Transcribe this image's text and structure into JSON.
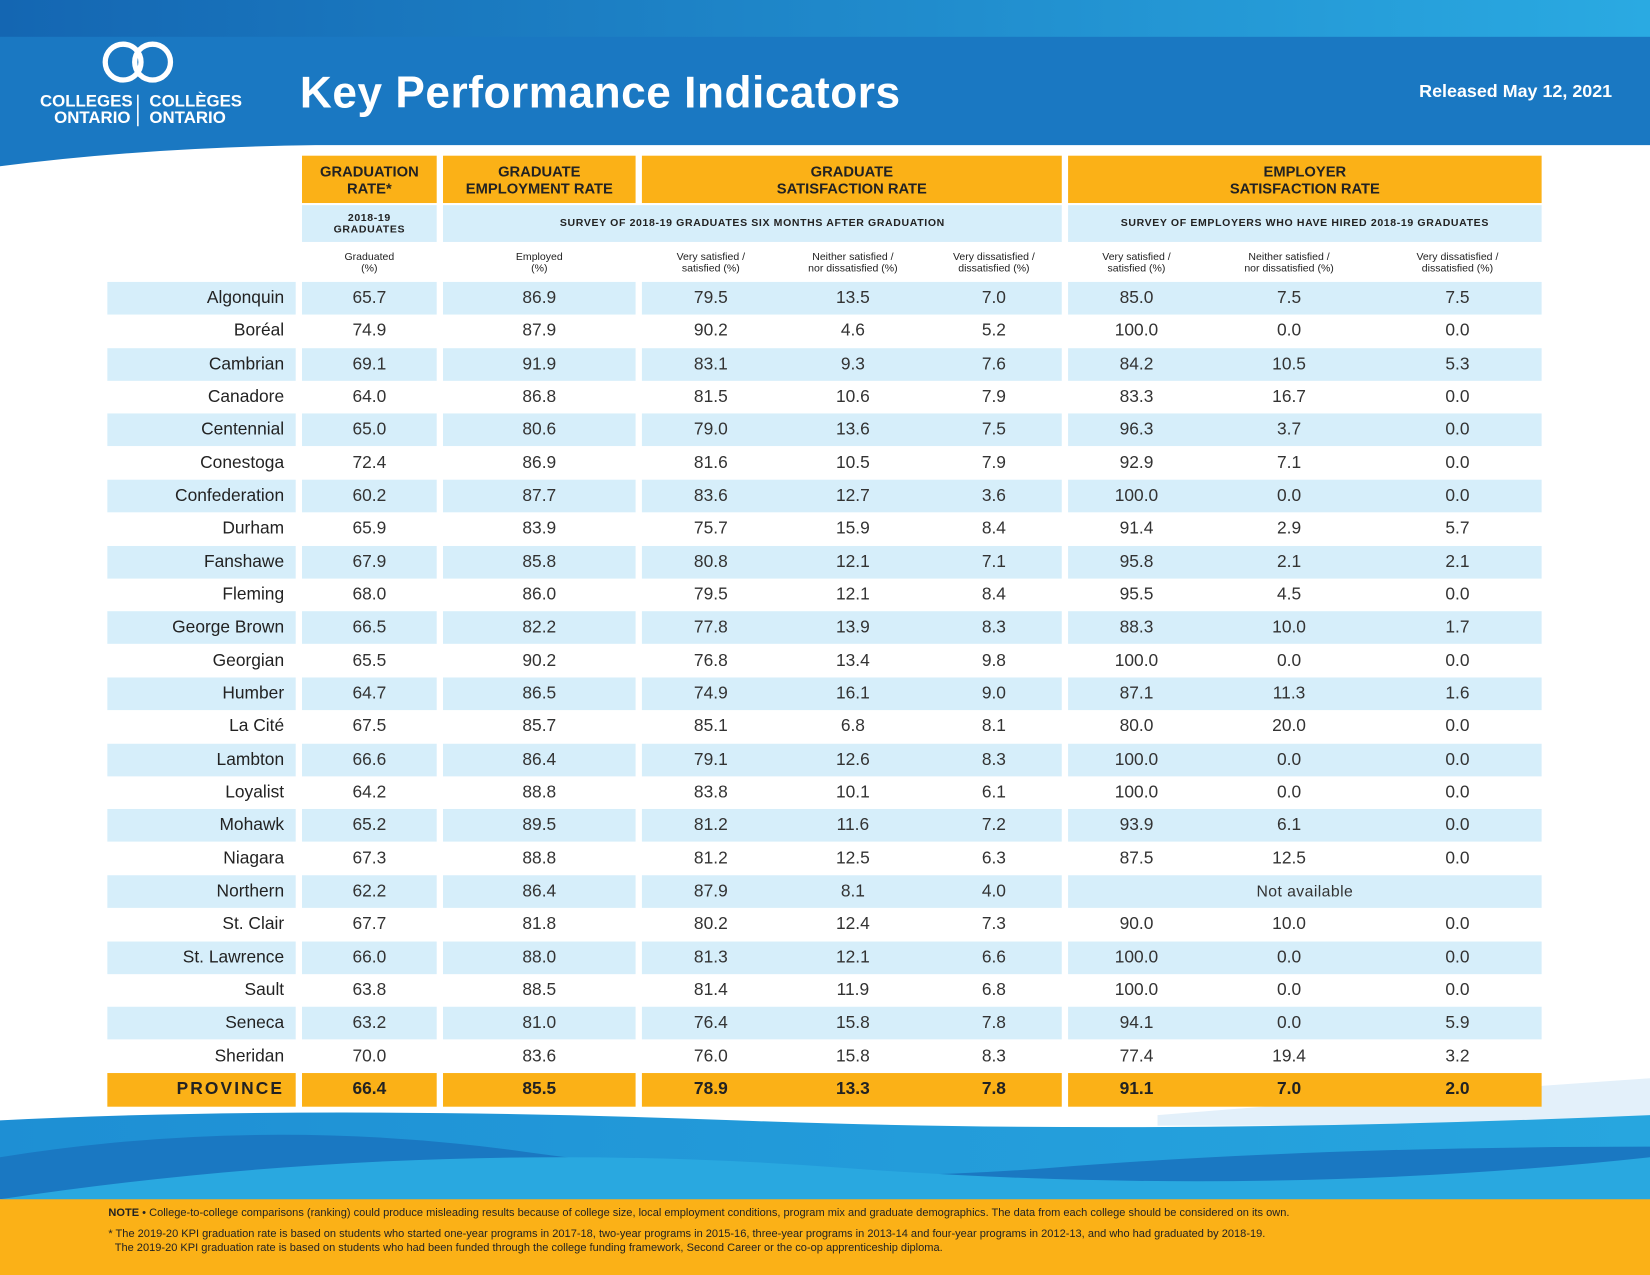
{
  "header": {
    "logo": [
      "COLLEGES",
      "ONTARIO",
      "COLLÈGES",
      "ONTARIO"
    ],
    "title": "Key Performance Indicators",
    "released": "Released May 12, 2021"
  },
  "table": {
    "groups": [
      "GRADUATION\nRATE*",
      "GRADUATE\nEMPLOYMENT RATE",
      "GRADUATE\nSATISFACTION RATE",
      "EMPLOYER\nSATISFACTION RATE"
    ],
    "subheads": [
      "2018-19\nGRADUATES",
      "SURVEY OF 2018-19 GRADUATES SIX MONTHS AFTER GRADUATION",
      "SURVEY OF EMPLOYERS WHO HAVE HIRED 2018-19 GRADUATES"
    ],
    "columns": [
      "Graduated\n(%)",
      "Employed\n(%)",
      "Very satisfied /\nsatisfied (%)",
      "Neither satisfied /\nnor dissatisfied (%)",
      "Very dissatisfied /\ndissatisfied (%)",
      "Very satisfied /\nsatisfied (%)",
      "Neither satisfied /\nnor dissatisfied (%)",
      "Very dissatisfied /\ndissatisfied (%)"
    ],
    "rows": [
      {
        "name": "Algonquin",
        "values": [
          "65.7",
          "86.9",
          "79.5",
          "13.5",
          "7.0",
          "85.0",
          "7.5",
          "7.5"
        ]
      },
      {
        "name": "Boréal",
        "values": [
          "74.9",
          "87.9",
          "90.2",
          "4.6",
          "5.2",
          "100.0",
          "0.0",
          "0.0"
        ]
      },
      {
        "name": "Cambrian",
        "values": [
          "69.1",
          "91.9",
          "83.1",
          "9.3",
          "7.6",
          "84.2",
          "10.5",
          "5.3"
        ]
      },
      {
        "name": "Canadore",
        "values": [
          "64.0",
          "86.8",
          "81.5",
          "10.6",
          "7.9",
          "83.3",
          "16.7",
          "0.0"
        ]
      },
      {
        "name": "Centennial",
        "values": [
          "65.0",
          "80.6",
          "79.0",
          "13.6",
          "7.5",
          "96.3",
          "3.7",
          "0.0"
        ]
      },
      {
        "name": "Conestoga",
        "values": [
          "72.4",
          "86.9",
          "81.6",
          "10.5",
          "7.9",
          "92.9",
          "7.1",
          "0.0"
        ]
      },
      {
        "name": "Confederation",
        "values": [
          "60.2",
          "87.7",
          "83.6",
          "12.7",
          "3.6",
          "100.0",
          "0.0",
          "0.0"
        ]
      },
      {
        "name": "Durham",
        "values": [
          "65.9",
          "83.9",
          "75.7",
          "15.9",
          "8.4",
          "91.4",
          "2.9",
          "5.7"
        ]
      },
      {
        "name": "Fanshawe",
        "values": [
          "67.9",
          "85.8",
          "80.8",
          "12.1",
          "7.1",
          "95.8",
          "2.1",
          "2.1"
        ]
      },
      {
        "name": "Fleming",
        "values": [
          "68.0",
          "86.0",
          "79.5",
          "12.1",
          "8.4",
          "95.5",
          "4.5",
          "0.0"
        ]
      },
      {
        "name": "George Brown",
        "values": [
          "66.5",
          "82.2",
          "77.8",
          "13.9",
          "8.3",
          "88.3",
          "10.0",
          "1.7"
        ]
      },
      {
        "name": "Georgian",
        "values": [
          "65.5",
          "90.2",
          "76.8",
          "13.4",
          "9.8",
          "100.0",
          "0.0",
          "0.0"
        ]
      },
      {
        "name": "Humber",
        "values": [
          "64.7",
          "86.5",
          "74.9",
          "16.1",
          "9.0",
          "87.1",
          "11.3",
          "1.6"
        ]
      },
      {
        "name": "La Cité",
        "values": [
          "67.5",
          "85.7",
          "85.1",
          "6.8",
          "8.1",
          "80.0",
          "20.0",
          "0.0"
        ]
      },
      {
        "name": "Lambton",
        "values": [
          "66.6",
          "86.4",
          "79.1",
          "12.6",
          "8.3",
          "100.0",
          "0.0",
          "0.0"
        ]
      },
      {
        "name": "Loyalist",
        "values": [
          "64.2",
          "88.8",
          "83.8",
          "10.1",
          "6.1",
          "100.0",
          "0.0",
          "0.0"
        ]
      },
      {
        "name": "Mohawk",
        "values": [
          "65.2",
          "89.5",
          "81.2",
          "11.6",
          "7.2",
          "93.9",
          "6.1",
          "0.0"
        ]
      },
      {
        "name": "Niagara",
        "values": [
          "67.3",
          "88.8",
          "81.2",
          "12.5",
          "6.3",
          "87.5",
          "12.5",
          "0.0"
        ]
      },
      {
        "name": "Northern",
        "values": [
          "62.2",
          "86.4",
          "87.9",
          "8.1",
          "4.0"
        ],
        "note": "Not available"
      },
      {
        "name": "St. Clair",
        "values": [
          "67.7",
          "81.8",
          "80.2",
          "12.4",
          "7.3",
          "90.0",
          "10.0",
          "0.0"
        ]
      },
      {
        "name": "St. Lawrence",
        "values": [
          "66.0",
          "88.0",
          "81.3",
          "12.1",
          "6.6",
          "100.0",
          "0.0",
          "0.0"
        ]
      },
      {
        "name": "Sault",
        "values": [
          "63.8",
          "88.5",
          "81.4",
          "11.9",
          "6.8",
          "100.0",
          "0.0",
          "0.0"
        ]
      },
      {
        "name": "Seneca",
        "values": [
          "63.2",
          "81.0",
          "76.4",
          "15.8",
          "7.8",
          "94.1",
          "0.0",
          "5.9"
        ]
      },
      {
        "name": "Sheridan",
        "values": [
          "70.0",
          "83.6",
          "76.0",
          "15.8",
          "8.3",
          "77.4",
          "19.4",
          "3.2"
        ]
      }
    ],
    "total": {
      "name": "PROVINCE",
      "values": [
        "66.4",
        "85.5",
        "78.9",
        "13.3",
        "7.8",
        "91.1",
        "7.0",
        "2.0"
      ]
    }
  },
  "footer": {
    "note_label": "NOTE",
    "note": " • College-to-college comparisons (ranking) could produce misleading results because of college size, local employment conditions, program mix and graduate demographics. The data from each college should be considered on its own.",
    "footnotes": [
      "* The 2019-20 KPI graduation rate is based on students who started one-year programs in 2017-18, two-year programs in 2015-16, three-year programs in 2013-14 and four-year programs in 2012-13, and who had graduated by 2018-19.",
      "The 2019-20 KPI graduation rate is based on students who had been funded through the college funding framework, Second Career or the co-op apprenticeship diploma."
    ]
  }
}
